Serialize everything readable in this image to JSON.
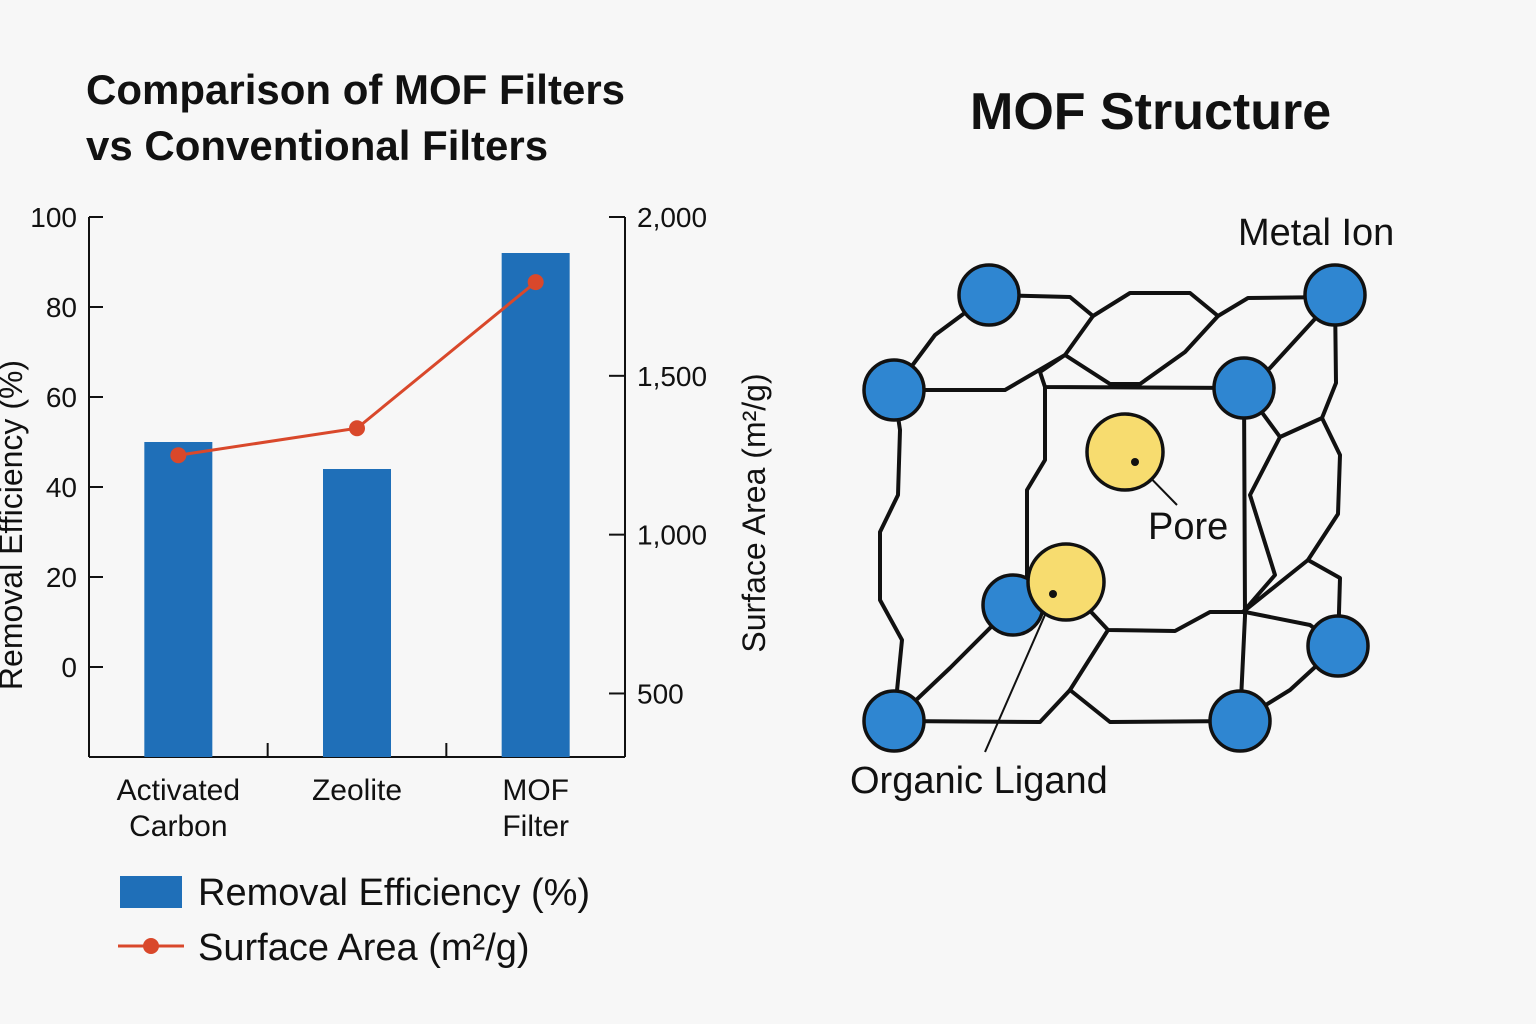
{
  "chart_data": {
    "type": "bar",
    "title_lines": [
      "Comparison of MOF Filters",
      "vs Conventional Filters"
    ],
    "categories": [
      [
        "Activated",
        "Carbon"
      ],
      [
        "Zeolite"
      ],
      [
        "MOF",
        "Filter"
      ]
    ],
    "series": [
      {
        "name": "Removal Efficiency (%)",
        "type": "bar",
        "axis": "left",
        "values": [
          50,
          44,
          92
        ],
        "color": "#1f6fb8"
      },
      {
        "name": "Surface Area (m²/g)",
        "type": "line",
        "axis": "right",
        "values": [
          1250,
          1335,
          1795
        ],
        "color": "#d9482b"
      }
    ],
    "left_axis": {
      "label": "Removal Efficiency (%)",
      "ticks": [
        0,
        20,
        40,
        60,
        80,
        100
      ],
      "tick_labels": [
        "0",
        "20",
        "40",
        "60",
        "80",
        "100"
      ],
      "ylim": [
        -20,
        100
      ]
    },
    "right_axis": {
      "label": "Surface Area (m²/g)",
      "ticks": [
        500,
        1000,
        1500,
        2000
      ],
      "tick_labels": [
        "500",
        "1,000",
        "1,500",
        "2,000"
      ],
      "ylim": [
        300,
        2000
      ]
    },
    "legend": [
      "Removal Efficiency (%)",
      "Surface Area (m²/g)"
    ]
  },
  "diagram": {
    "title": "MOF Structure",
    "labels": {
      "metal_ion": "Metal Ion",
      "pore": "Pore",
      "organic_ligand": "Organic Ligand"
    },
    "colors": {
      "metal_ion": "#2f86d1",
      "pore": "#f7dc6f",
      "line": "#111111"
    }
  }
}
